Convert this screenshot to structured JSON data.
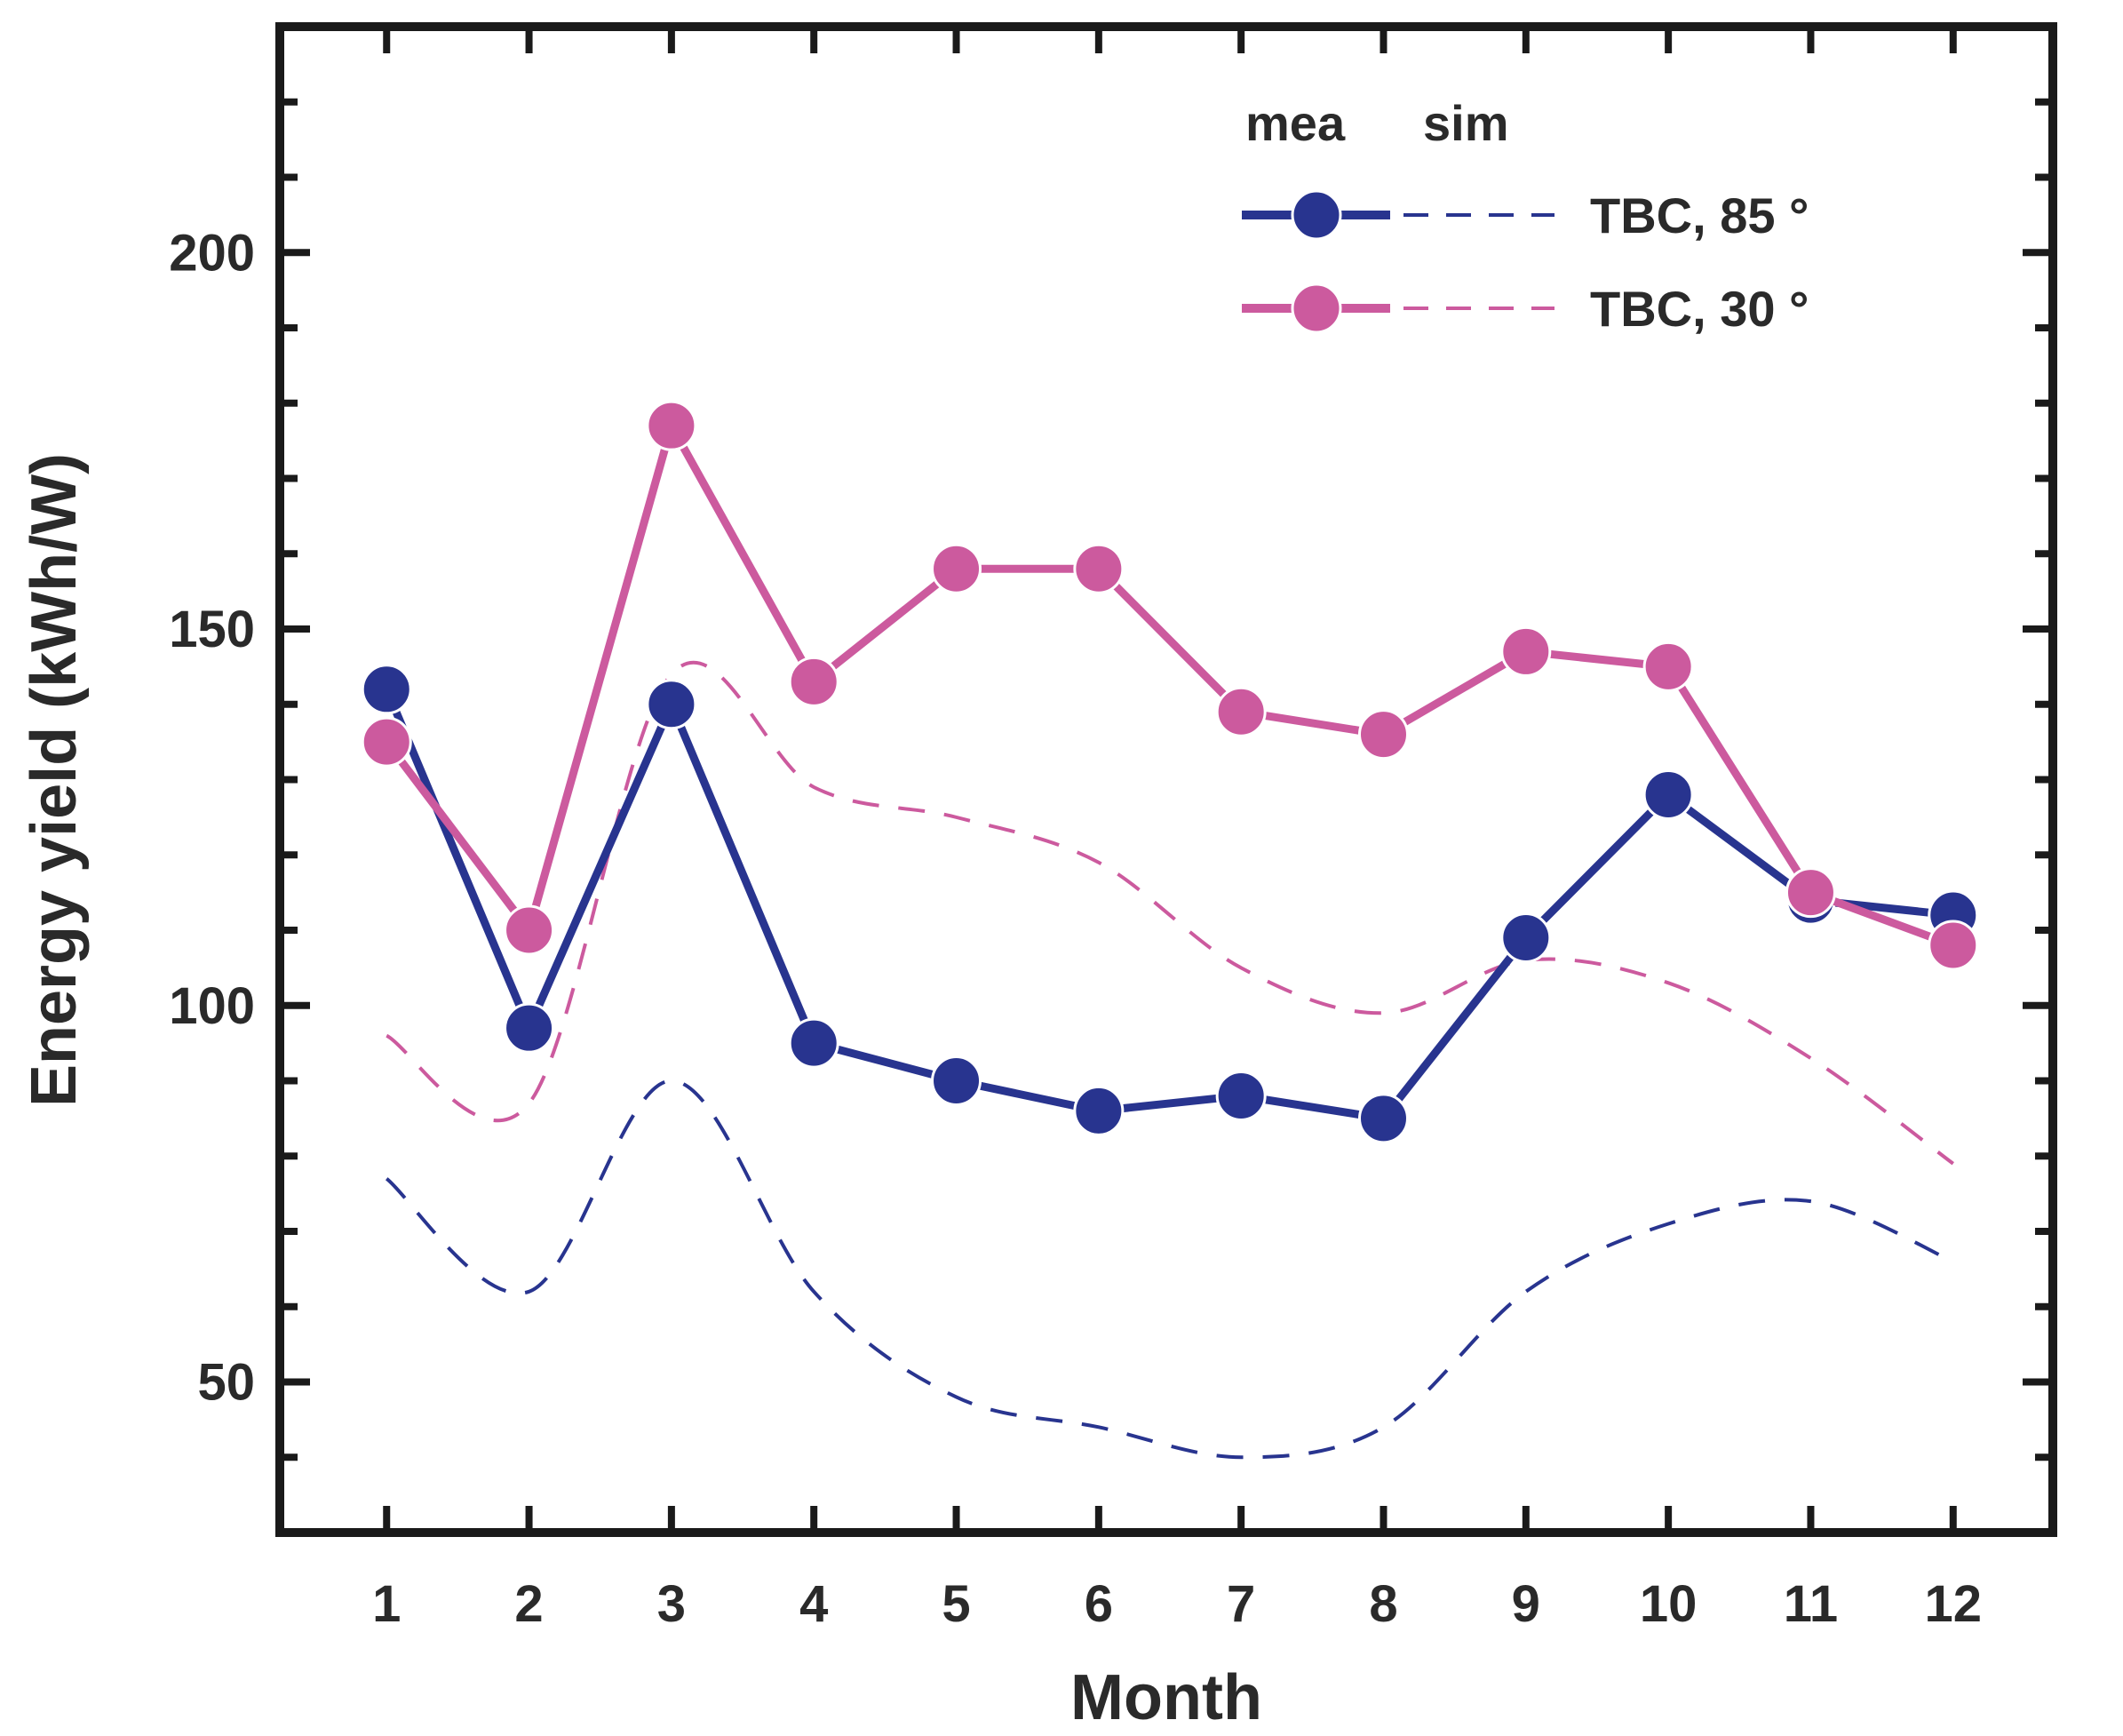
{
  "chart_data": {
    "type": "line",
    "title": "",
    "xlabel": "Month",
    "ylabel": "Energy yield (kWh/W)",
    "xlim": [
      0.25,
      12.7
    ],
    "ylim": [
      30,
      230
    ],
    "x": [
      1,
      2,
      3,
      4,
      5,
      6,
      7,
      8,
      9,
      10,
      11,
      12
    ],
    "xticks": [
      "1",
      "2",
      "3",
      "4",
      "5",
      "6",
      "7",
      "8",
      "9",
      "10",
      "11",
      "12"
    ],
    "yticks": [
      50,
      100,
      150,
      200
    ],
    "ytick_labels": [
      "50",
      "100",
      "150",
      "200"
    ],
    "legend": {
      "header_mea": "mea",
      "header_sim": "sim",
      "position": "top-right"
    },
    "series": [
      {
        "name": "TBC, 85 °",
        "kind": "measured",
        "color": "#28348f",
        "values": [
          142,
          97,
          140,
          95,
          90,
          86,
          88,
          85,
          109,
          128,
          114,
          112
        ]
      },
      {
        "name": "TBC, 30 °",
        "kind": "measured",
        "color": "#cc5a9e",
        "values": [
          135,
          110,
          177,
          143,
          158,
          158,
          139,
          136,
          147,
          145,
          115,
          108
        ]
      },
      {
        "name": "TBC, 85 °",
        "kind": "simulated",
        "color": "#28348f",
        "values": [
          77,
          62,
          90,
          62,
          48,
          44,
          40,
          44,
          62,
          71,
          74,
          66
        ]
      },
      {
        "name": "TBC, 30 °",
        "kind": "simulated",
        "color": "#cc5a9e",
        "values": [
          96,
          87,
          144,
          129,
          125,
          119,
          105,
          99,
          106,
          103,
          93,
          79
        ]
      }
    ]
  }
}
